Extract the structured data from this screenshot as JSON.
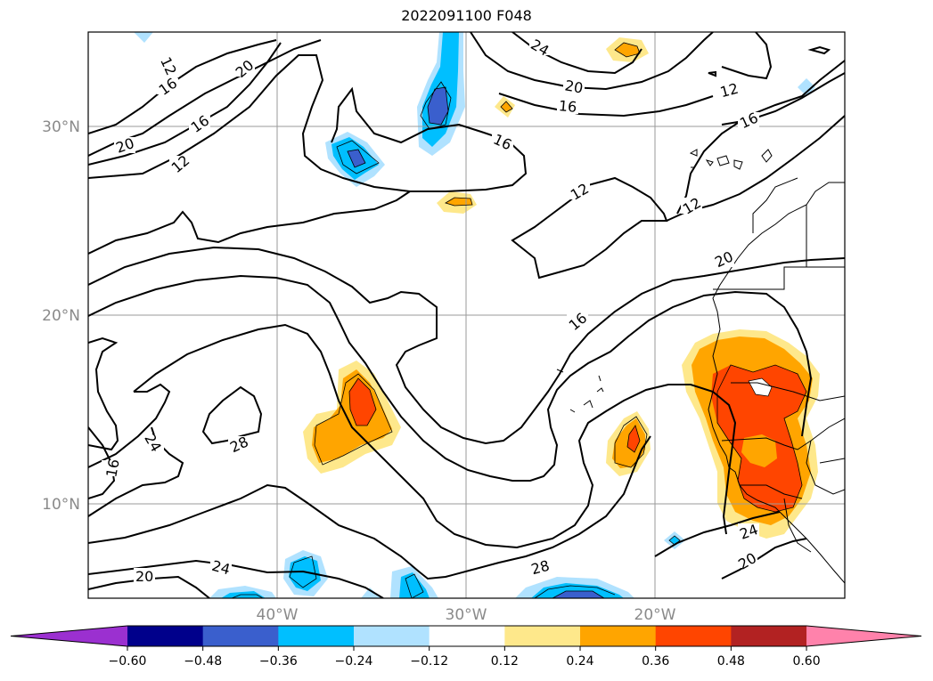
{
  "title": "2022091100 F048",
  "map": {
    "lat_labels": [
      "30°N",
      "20°N",
      "10°N"
    ],
    "lon_labels": [
      "40°W",
      "30°W",
      "20°W"
    ],
    "contour_labels": [
      "12",
      "16",
      "20",
      "24",
      "28"
    ]
  },
  "colorbar": {
    "ticks": [
      "−0.60",
      "−0.48",
      "−0.36",
      "−0.24",
      "−0.12",
      "0.12",
      "0.24",
      "0.36",
      "0.48",
      "0.60"
    ],
    "colors": [
      "#9b30d0",
      "#00008b",
      "#3a5fcd",
      "#00bfff",
      "#b0e2ff",
      "#ffffff",
      "#fee88b",
      "#ffa500",
      "#ff4500",
      "#b22222",
      "#ff82ab"
    ]
  },
  "fill_colors": {
    "light_blue": "#b0e2ff",
    "blue": "#00bfff",
    "dark_blue": "#3a5fcd",
    "yellow": "#fee88b",
    "orange": "#ffa500",
    "red_orange": "#ff4500"
  }
}
